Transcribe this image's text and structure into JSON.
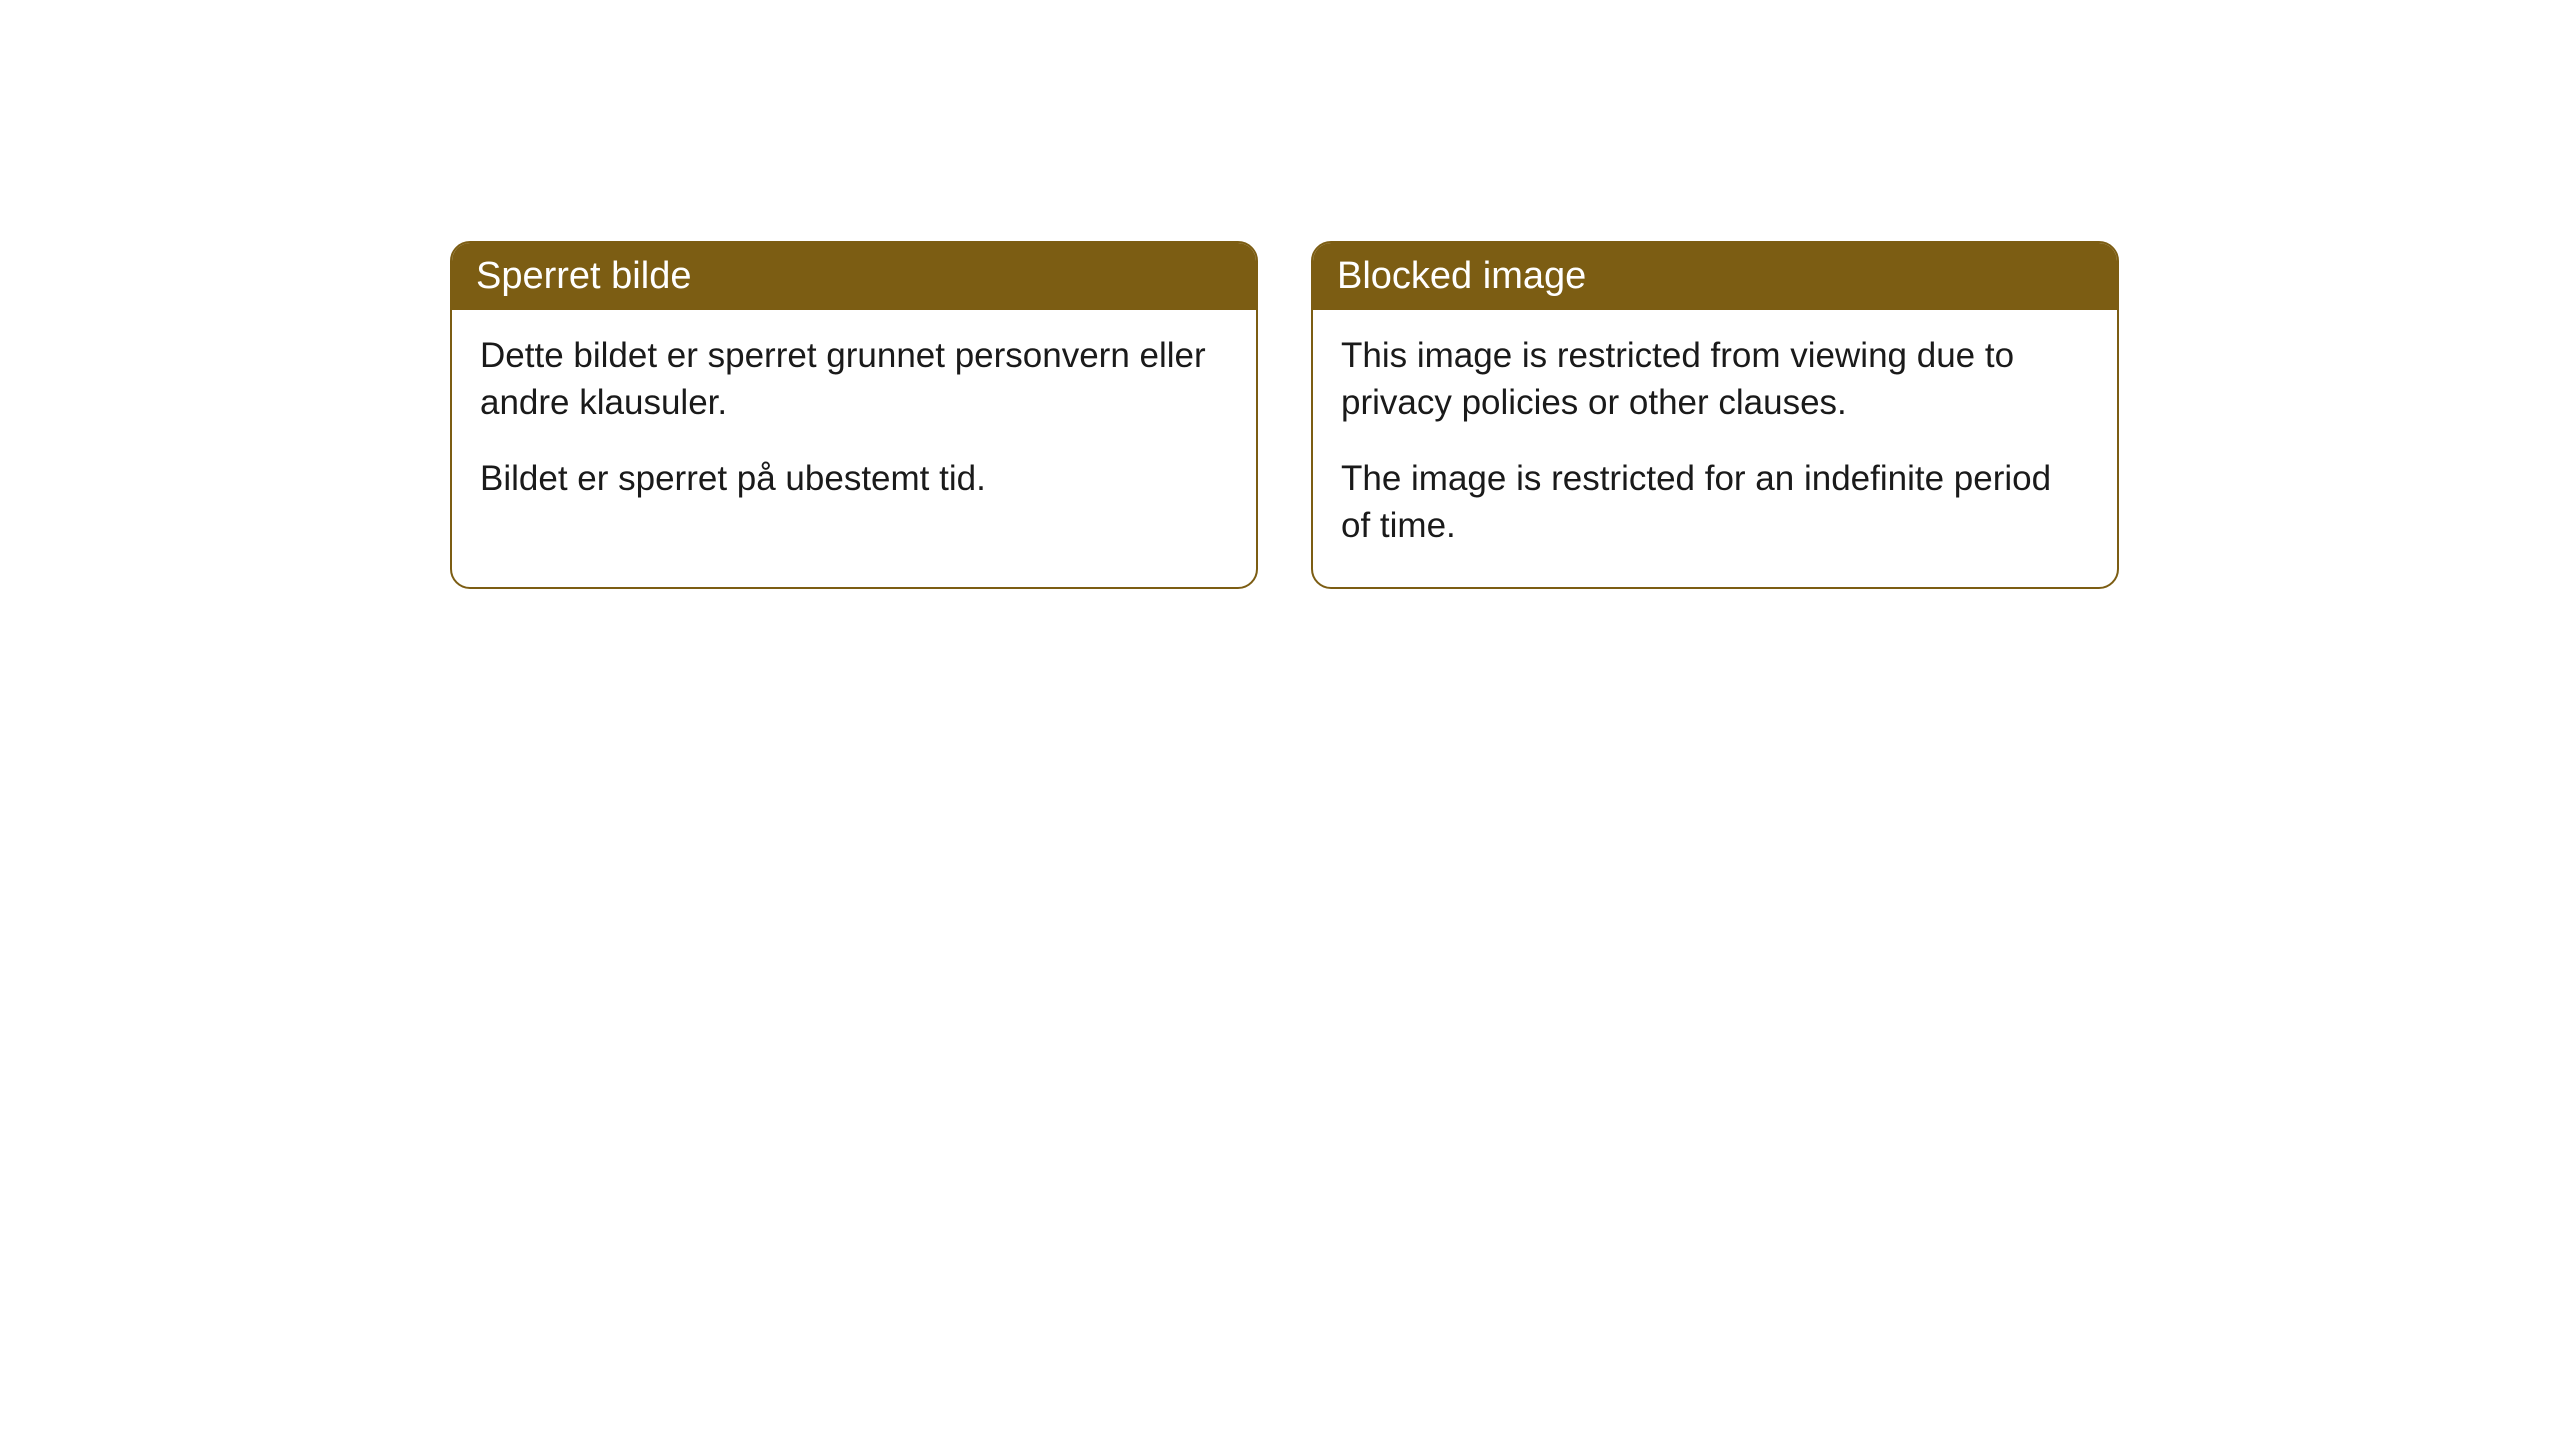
{
  "cards": [
    {
      "title": "Sperret bilde",
      "paragraph1": "Dette bildet er sperret grunnet personvern eller andre klausuler.",
      "paragraph2": "Bildet er sperret på ubestemt tid."
    },
    {
      "title": "Blocked image",
      "paragraph1": "This image is restricted from viewing due to privacy policies or other clauses.",
      "paragraph2": "The image is restricted for an indefinite period of time."
    }
  ],
  "styling": {
    "header_background_color": "#7c5d13",
    "header_text_color": "#ffffff",
    "border_color": "#7c5d13",
    "body_background_color": "#ffffff",
    "body_text_color": "#1a1a1a",
    "border_radius": 20,
    "header_fontsize": 38,
    "body_fontsize": 35
  }
}
